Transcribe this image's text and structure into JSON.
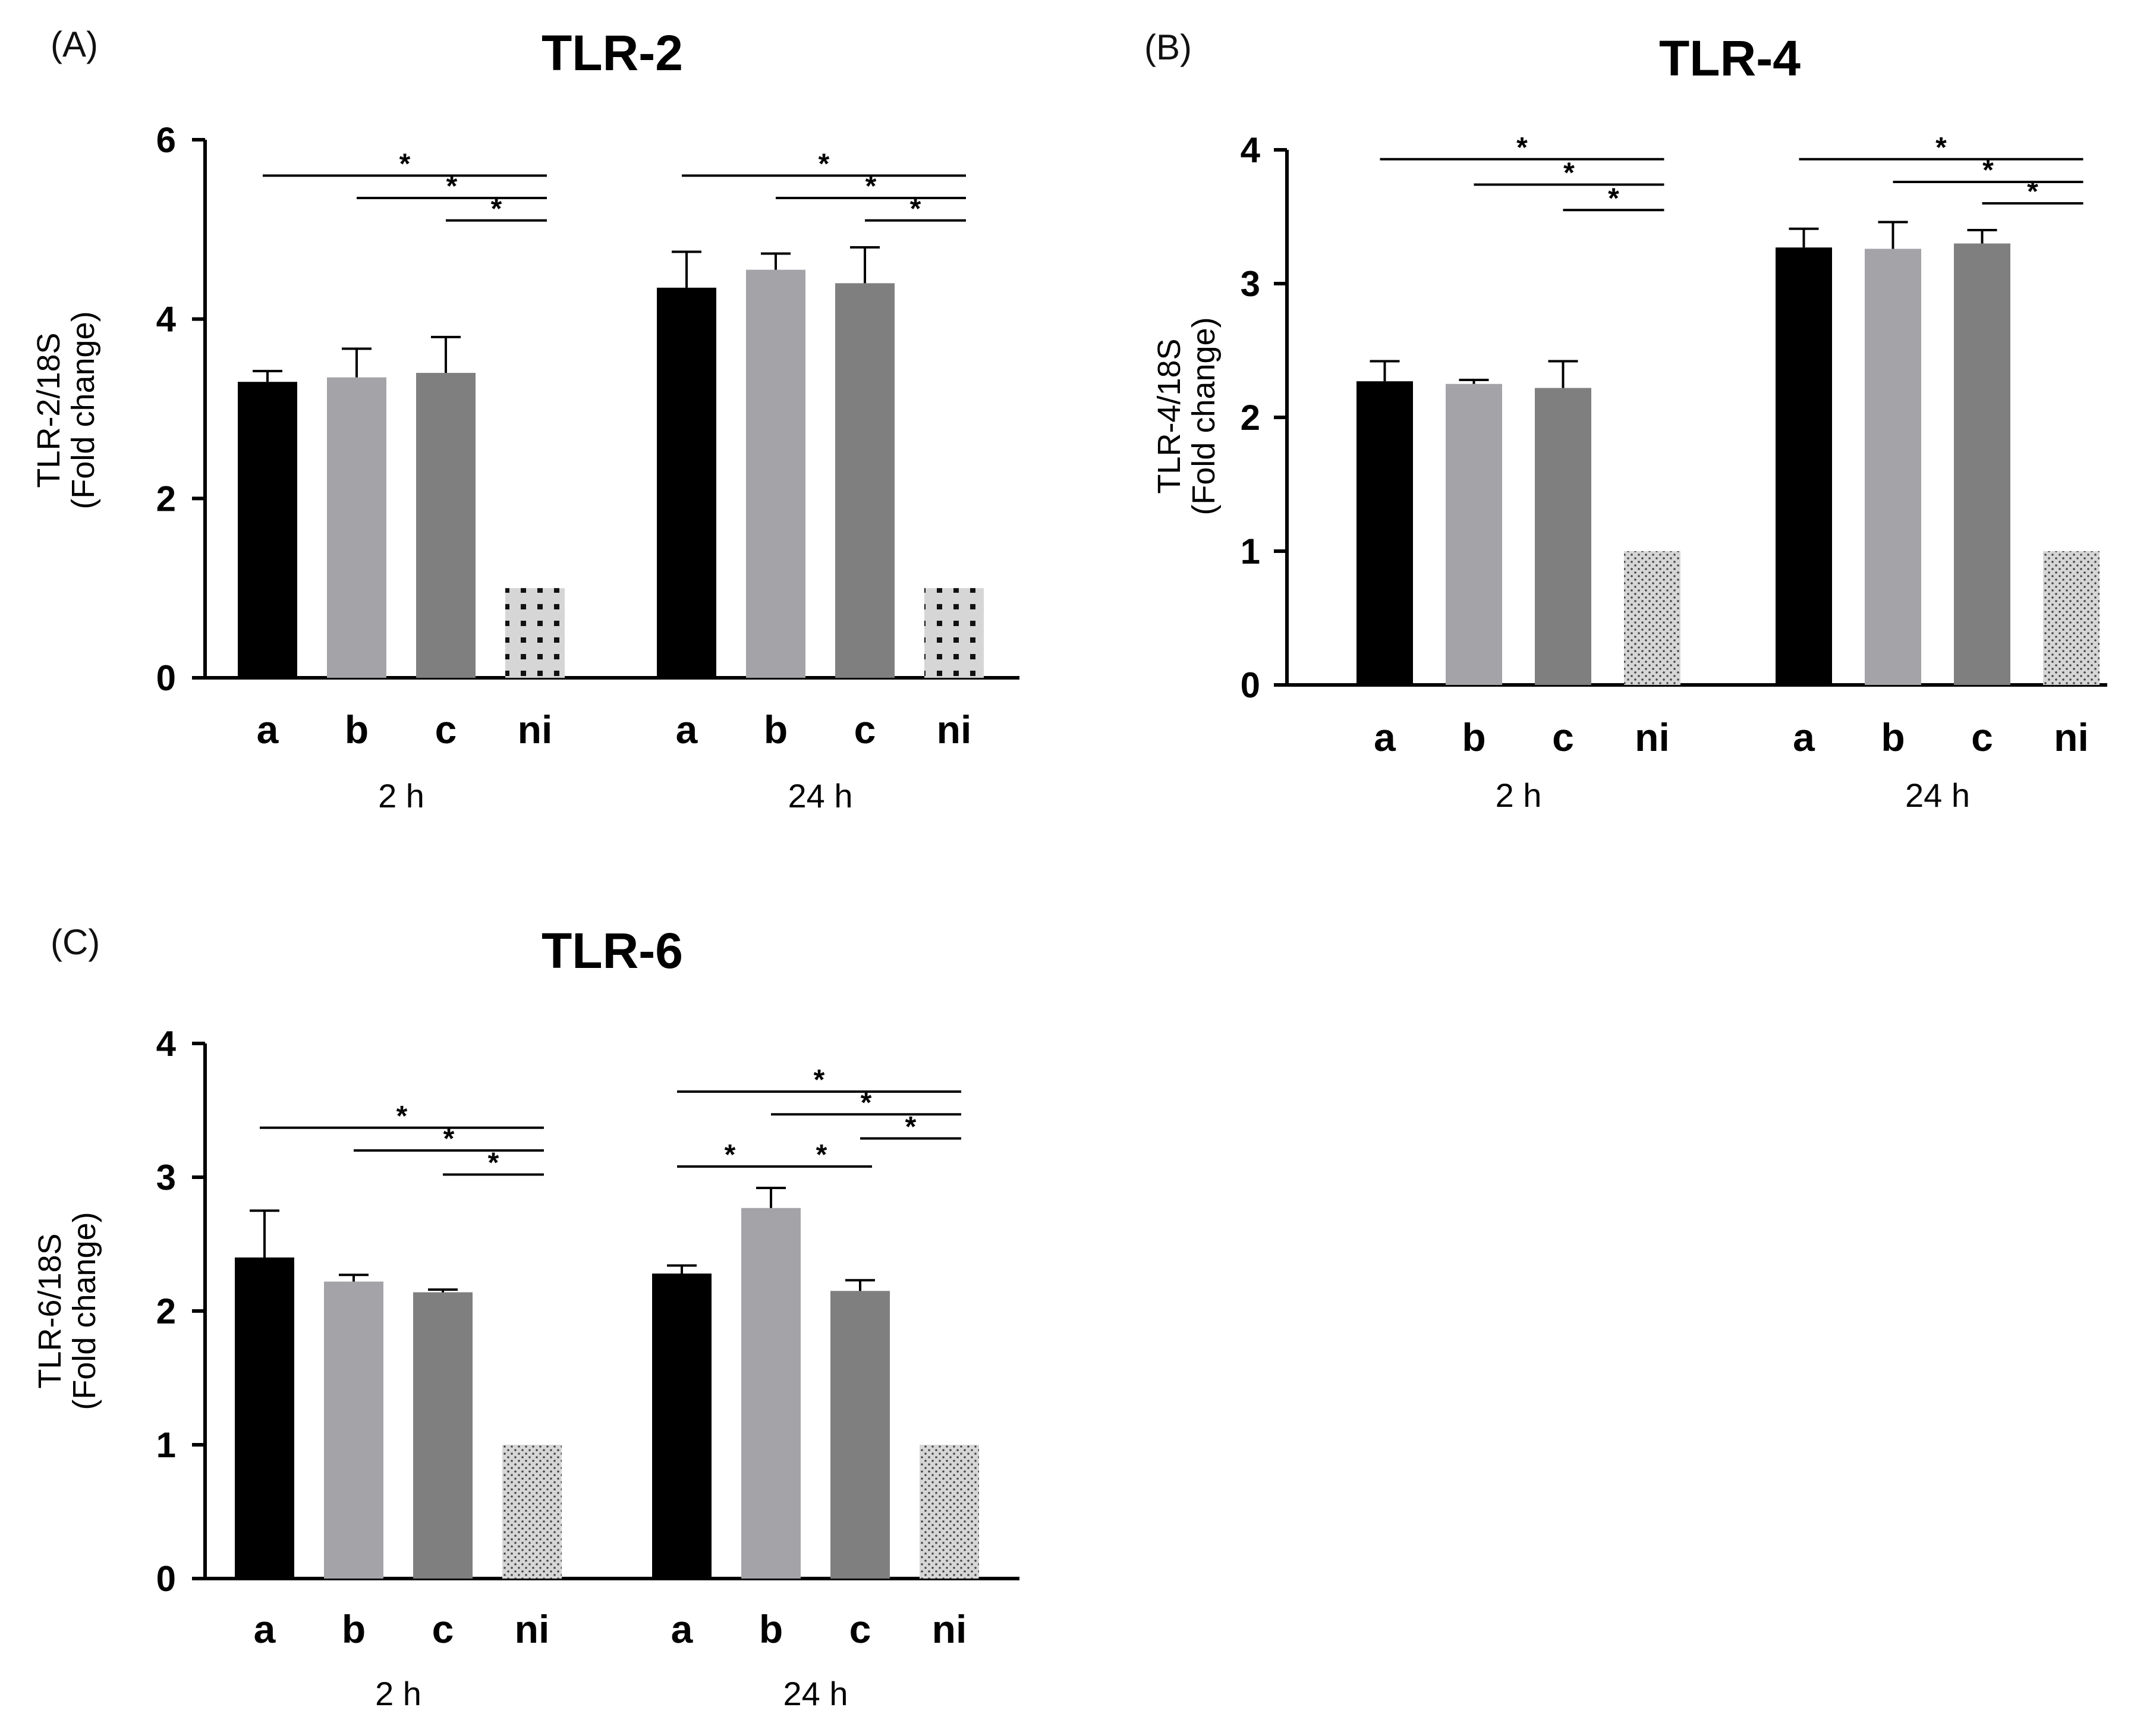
{
  "colors": {
    "a": "#000000",
    "b": "#a4a3a7",
    "c": "#7f7f7f",
    "ni": "#d6d6d6",
    "axis": "#000000"
  },
  "chart_data": [
    {
      "type": "bar",
      "panel_label": "(A)",
      "title": "TLR-2",
      "ylabel_line1": "TLR-2/18S",
      "ylabel_line2": "(Fold change)",
      "ylim": [
        0,
        6
      ],
      "yticks": [
        0,
        2,
        4,
        6
      ],
      "categories": [
        "a",
        "b",
        "c",
        "ni"
      ],
      "groups": [
        {
          "label": "2 h",
          "values": [
            3.3,
            3.35,
            3.4,
            1.0
          ],
          "errors": [
            0.12,
            0.32,
            0.4,
            0
          ]
        },
        {
          "label": "24 h",
          "values": [
            4.35,
            4.55,
            4.4,
            1.0
          ],
          "errors": [
            0.4,
            0.18,
            0.4,
            0
          ]
        }
      ],
      "significance": [
        {
          "group": 0,
          "from": 0,
          "to": 3,
          "y": 5.6,
          "label": "*"
        },
        {
          "group": 0,
          "from": 1,
          "to": 3,
          "y": 5.35,
          "label": "*"
        },
        {
          "group": 0,
          "from": 2,
          "to": 3,
          "y": 5.1,
          "label": "*"
        },
        {
          "group": 1,
          "from": 0,
          "to": 3,
          "y": 5.6,
          "label": "*"
        },
        {
          "group": 1,
          "from": 1,
          "to": 3,
          "y": 5.35,
          "label": "*"
        },
        {
          "group": 1,
          "from": 2,
          "to": 3,
          "y": 5.1,
          "label": "*"
        }
      ]
    },
    {
      "type": "bar",
      "panel_label": "(B)",
      "title": "TLR-4",
      "ylabel_line1": "TLR-4/18S",
      "ylabel_line2": "(Fold change)",
      "ylim": [
        0,
        4
      ],
      "yticks": [
        0,
        1,
        2,
        3,
        4
      ],
      "categories": [
        "a",
        "b",
        "c",
        "ni"
      ],
      "groups": [
        {
          "label": "2 h",
          "values": [
            2.27,
            2.25,
            2.22,
            1.0
          ],
          "errors": [
            0.15,
            0.03,
            0.2,
            0
          ]
        },
        {
          "label": "24 h",
          "values": [
            3.27,
            3.26,
            3.3,
            1.0
          ],
          "errors": [
            0.14,
            0.2,
            0.1,
            0
          ]
        }
      ],
      "significance": [
        {
          "group": 0,
          "from": 0,
          "to": 3,
          "y": 3.93,
          "label": "*"
        },
        {
          "group": 0,
          "from": 1,
          "to": 3,
          "y": 3.74,
          "label": "*"
        },
        {
          "group": 0,
          "from": 2,
          "to": 3,
          "y": 3.55,
          "label": "*"
        },
        {
          "group": 1,
          "from": 0,
          "to": 3,
          "y": 3.93,
          "label": "*"
        },
        {
          "group": 1,
          "from": 1,
          "to": 3,
          "y": 3.76,
          "label": "*"
        },
        {
          "group": 1,
          "from": 2,
          "to": 3,
          "y": 3.6,
          "label": "*"
        }
      ]
    },
    {
      "type": "bar",
      "panel_label": "(C)",
      "title": "TLR-6",
      "ylabel_line1": "TLR-6/18S",
      "ylabel_line2": "(Fold change)",
      "ylim": [
        0,
        4
      ],
      "yticks": [
        0,
        1,
        2,
        3,
        4
      ],
      "categories": [
        "a",
        "b",
        "c",
        "ni"
      ],
      "groups": [
        {
          "label": "2 h",
          "values": [
            2.4,
            2.22,
            2.14,
            1.0
          ],
          "errors": [
            0.35,
            0.05,
            0.02,
            0
          ]
        },
        {
          "label": "24 h",
          "values": [
            2.28,
            2.77,
            2.15,
            1.0
          ],
          "errors": [
            0.06,
            0.15,
            0.08,
            0
          ]
        }
      ],
      "significance": [
        {
          "group": 0,
          "from": 0,
          "to": 3,
          "y": 3.37,
          "label": "*"
        },
        {
          "group": 0,
          "from": 1,
          "to": 3,
          "y": 3.2,
          "label": "*"
        },
        {
          "group": 0,
          "from": 2,
          "to": 3,
          "y": 3.02,
          "label": "*"
        },
        {
          "group": 1,
          "from": 0,
          "to": 3,
          "y": 3.64,
          "label": "*"
        },
        {
          "group": 1,
          "from": 1,
          "to": 3,
          "y": 3.47,
          "label": "*"
        },
        {
          "group": 1,
          "from": 2,
          "to": 3,
          "y": 3.29,
          "label": "*"
        },
        {
          "group": 1,
          "from": 0,
          "to": 1,
          "y": 3.08,
          "label": "*"
        },
        {
          "group": 1,
          "from": 1,
          "to": 2,
          "y": 3.08,
          "label": "*"
        }
      ]
    }
  ]
}
